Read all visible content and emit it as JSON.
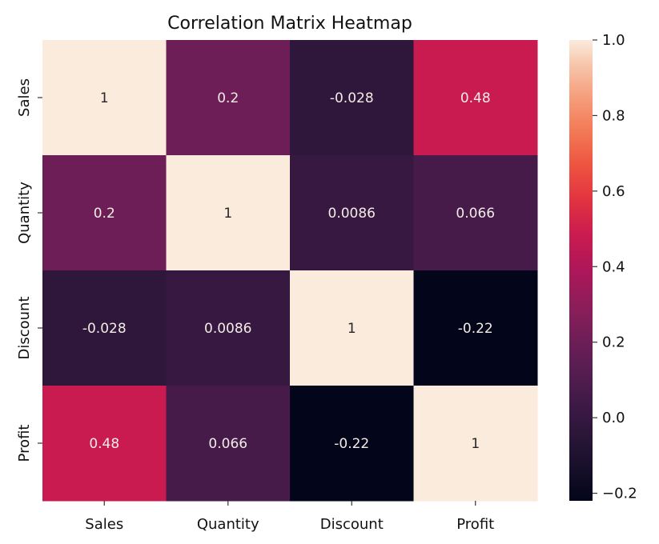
{
  "chart_data": {
    "type": "heatmap",
    "title": "Correlation Matrix Heatmap",
    "xlabel": "",
    "ylabel": "",
    "x_categories": [
      "Sales",
      "Quantity",
      "Discount",
      "Profit"
    ],
    "y_categories": [
      "Sales",
      "Quantity",
      "Discount",
      "Profit"
    ],
    "values": [
      [
        1,
        0.2,
        -0.028,
        0.48
      ],
      [
        0.2,
        1,
        0.0086,
        0.066
      ],
      [
        -0.028,
        0.0086,
        1,
        -0.22
      ],
      [
        0.48,
        0.066,
        -0.22,
        1
      ]
    ],
    "annotations": [
      [
        "1",
        "0.2",
        "-0.028",
        "0.48"
      ],
      [
        "0.2",
        "1",
        "0.0086",
        "0.066"
      ],
      [
        "-0.028",
        "0.0086",
        "1",
        "-0.22"
      ],
      [
        "0.48",
        "0.066",
        "-0.22",
        "1"
      ]
    ],
    "colormap": "rocket",
    "colorbar": {
      "range": [
        -0.22,
        1.0
      ],
      "ticks": [
        1.0,
        0.8,
        0.6,
        0.4,
        0.2,
        0.0,
        -0.2
      ],
      "tick_labels": [
        "1.0",
        "0.8",
        "0.6",
        "0.4",
        "0.2",
        "0.0",
        "−0.2"
      ],
      "placement": "right"
    },
    "grid": false
  }
}
